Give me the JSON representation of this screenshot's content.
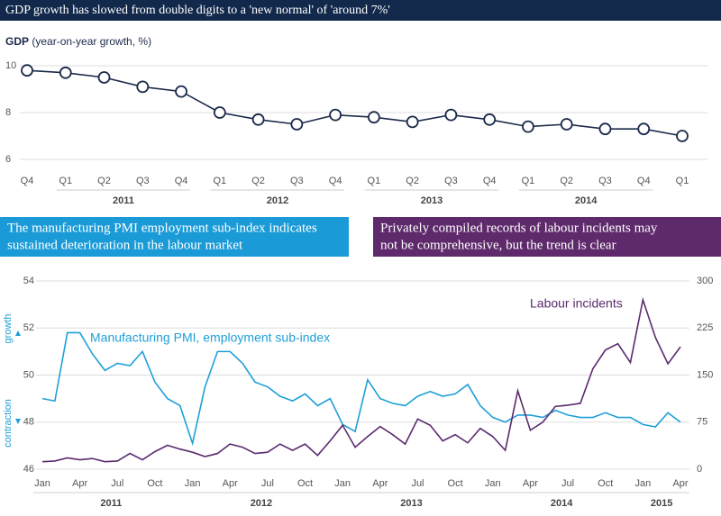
{
  "title": "GDP growth has slowed from double digits to a 'new normal' of 'around 7%'",
  "banners": [
    {
      "lines": [
        "The manufacturing PMI employment sub-index indicates",
        "sustained deterioration in the labour market"
      ],
      "color": "#1a9bd7"
    },
    {
      "lines": [
        "Privately compiled records of labour incidents may",
        "not be comprehensive, but the trend is clear"
      ],
      "color": "#5e2a6b"
    }
  ],
  "chart_data": [
    {
      "type": "line",
      "ylabel": [
        "GDP",
        "(year-on-year growth, %)"
      ],
      "categories": [
        "Q4",
        "Q1",
        "Q2",
        "Q3",
        "Q4",
        "Q1",
        "Q2",
        "Q3",
        "Q4",
        "Q1",
        "Q2",
        "Q3",
        "Q4",
        "Q1",
        "Q2",
        "Q3",
        "Q4",
        "Q1"
      ],
      "x_groups": [
        "2011",
        "2012",
        "2013",
        "2014"
      ],
      "series": [
        {
          "name": null,
          "color": "#1b2a4a",
          "values": [
            9.8,
            9.7,
            9.5,
            9.1,
            8.9,
            8.0,
            7.7,
            7.5,
            7.9,
            7.8,
            7.6,
            7.9,
            7.7,
            7.4,
            7.5,
            7.3,
            7.3,
            7.0
          ]
        }
      ],
      "ylim": [
        6,
        10
      ],
      "yticks": [
        6,
        8,
        10
      ],
      "grid": true,
      "markers": true
    },
    {
      "type": "line",
      "categories": [
        "Jan",
        null,
        null,
        "Apr",
        null,
        null,
        "Jul",
        null,
        null,
        "Oct",
        null,
        null,
        "Jan",
        null,
        null,
        "Apr",
        null,
        null,
        "Jul",
        null,
        null,
        "Oct",
        null,
        null,
        "Jan",
        null,
        null,
        "Apr",
        null,
        null,
        "Jul",
        null,
        null,
        "Oct",
        null,
        null,
        "Jan",
        null,
        null,
        "Apr",
        null,
        null,
        "Jul",
        null,
        null,
        "Oct",
        null,
        null,
        "Jan",
        null,
        null,
        "Apr"
      ],
      "x_groups": [
        "2011",
        "2012",
        "2013",
        "2014",
        "2015"
      ],
      "annotations": [
        "growth",
        "contraction"
      ],
      "series": [
        {
          "name": "Manufacturing PMI, employment sub-index",
          "color": "#1f9fd8",
          "values": [
            49.0,
            48.9,
            51.8,
            51.8,
            50.9,
            50.2,
            50.5,
            50.4,
            51.0,
            49.7,
            49.0,
            48.7,
            47.1,
            49.5,
            51.0,
            51.0,
            50.5,
            49.7,
            49.5,
            49.1,
            48.9,
            49.2,
            48.7,
            49.0,
            47.9,
            47.6,
            49.8,
            49.0,
            48.8,
            48.7,
            49.1,
            49.3,
            49.1,
            49.2,
            49.6,
            48.7,
            48.2,
            48.0,
            48.3,
            48.3,
            48.2,
            48.5,
            48.3,
            48.2,
            48.2,
            48.4,
            48.2,
            48.2,
            47.9,
            47.8,
            48.4,
            48.0
          ]
        },
        {
          "name": "Labour incidents",
          "color": "#5b2a6e",
          "axis": "y2",
          "values": [
            12,
            13,
            18,
            15,
            17,
            12,
            13,
            25,
            15,
            28,
            38,
            32,
            27,
            20,
            25,
            40,
            35,
            25,
            27,
            40,
            30,
            40,
            22,
            45,
            70,
            35,
            52,
            68,
            55,
            40,
            80,
            70,
            45,
            55,
            42,
            65,
            52,
            30,
            125,
            62,
            75,
            100,
            102,
            105,
            160,
            190,
            200,
            170,
            270,
            210,
            168,
            195
          ]
        }
      ],
      "ylim": [
        46,
        54
      ],
      "yticks": [
        46,
        48,
        50,
        52,
        54
      ],
      "y2lim": [
        0,
        300
      ],
      "y2ticks": [
        0,
        75,
        150,
        225,
        300
      ],
      "grid": true
    }
  ]
}
